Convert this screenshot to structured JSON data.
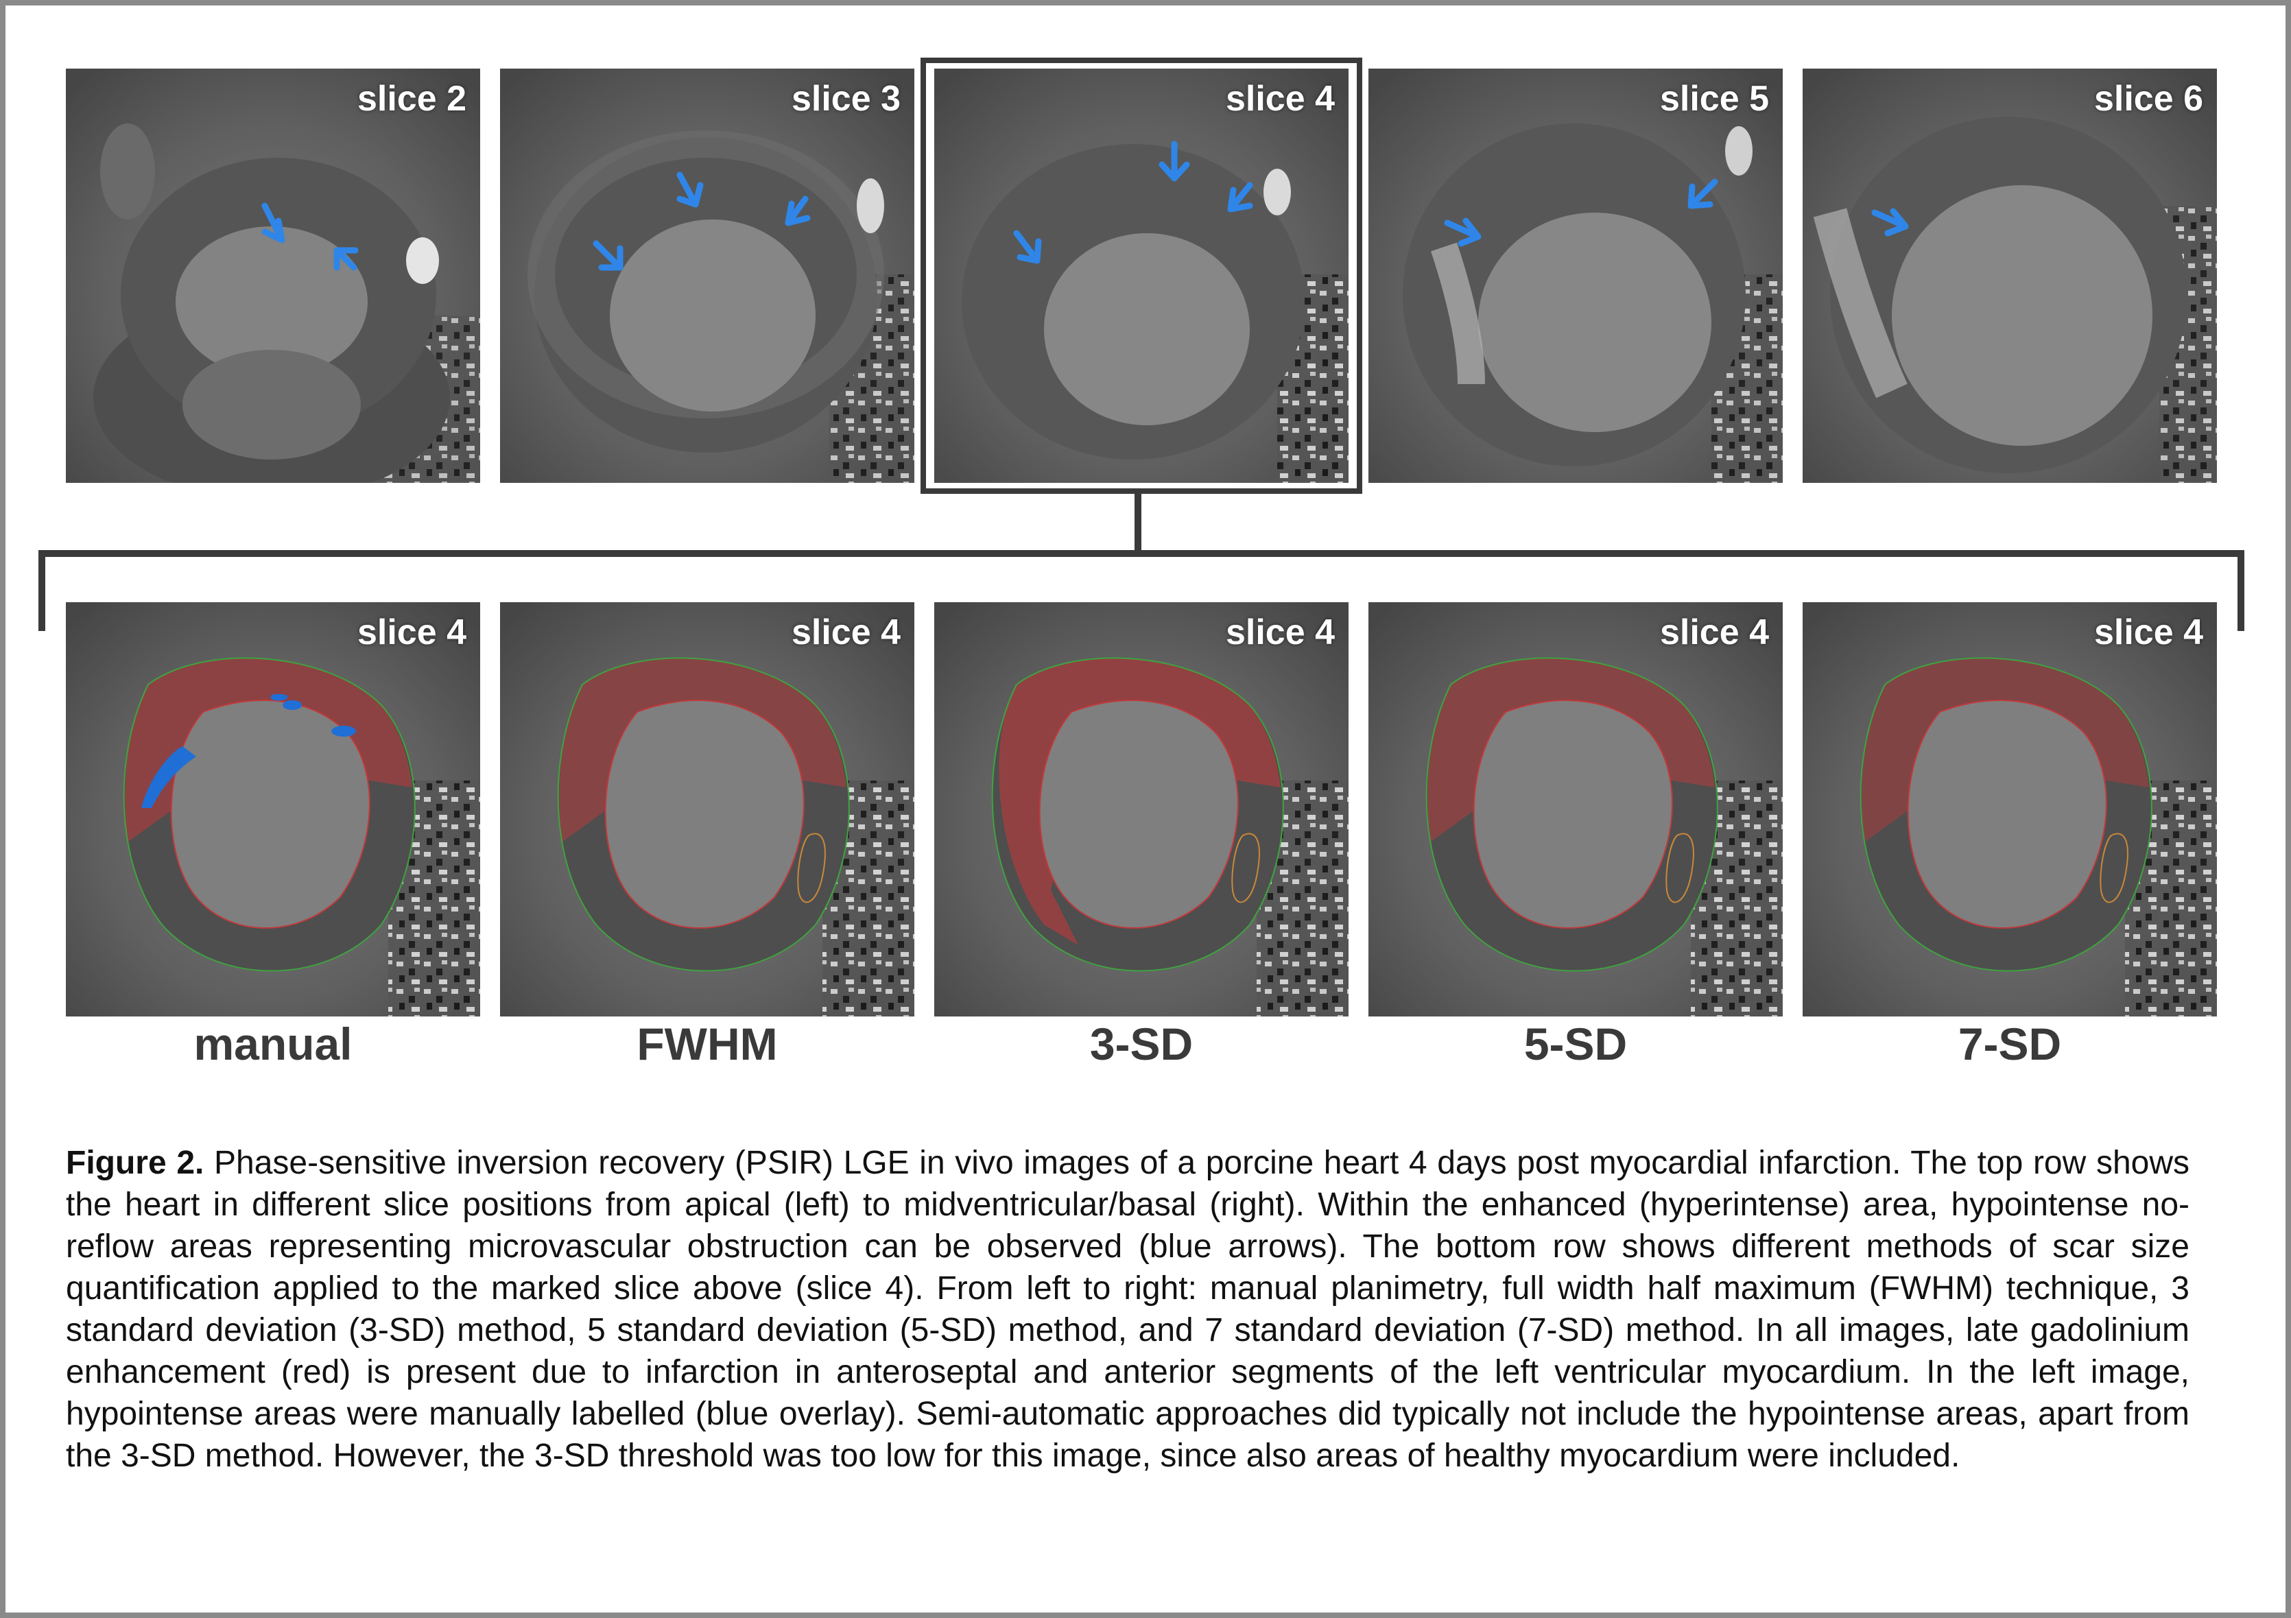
{
  "top_row": {
    "panels": [
      {
        "label": "slice 2"
      },
      {
        "label": "slice 3"
      },
      {
        "label": "slice 4"
      },
      {
        "label": "slice 5"
      },
      {
        "label": "slice 6"
      }
    ]
  },
  "bottom_row": {
    "panels": [
      {
        "label": "slice 4",
        "method": "manual"
      },
      {
        "label": "slice 4",
        "method": "FWHM"
      },
      {
        "label": "slice 4",
        "method": "3-SD"
      },
      {
        "label": "slice 4",
        "method": "5-SD"
      },
      {
        "label": "slice 4",
        "method": "7-SD"
      }
    ]
  },
  "colors": {
    "arrow": "#2f86e8",
    "scar_overlay": "#c0393b",
    "mvo_overlay": "#1f6fd6",
    "epicardial_contour": "#3fa33f",
    "frame": "#3a3a3a"
  },
  "caption": {
    "label": "Figure 2.",
    "text": "Phase-sensitive inversion recovery (PSIR) LGE in vivo images of a porcine heart 4 days post myocardial infarction. The top row shows the heart in different slice positions from apical (left) to midventricular/basal (right). Within the enhanced (hyperintense) area, hypointense no-reflow areas representing microvascular obstruction can be observed (blue arrows). The bottom row shows different methods of scar size quantification applied to the marked slice above (slice 4). From left to right: manual planimetry, full width half maximum (FWHM) technique, 3 standard deviation (3-SD) method, 5 standard deviation (5-SD) method, and 7 standard deviation (7-SD) method. In all images, late gadolinium enhancement (red) is present due to infarction in anteroseptal and anterior segments of the left ventricular myocardium. In the left image, hypointense areas were manually labelled (blue overlay). Semi-automatic approaches did typically not include the hypointense areas, apart from the 3-SD method. However, the 3-SD threshold was too low for this image, since also areas of healthy myocardium were included."
  }
}
